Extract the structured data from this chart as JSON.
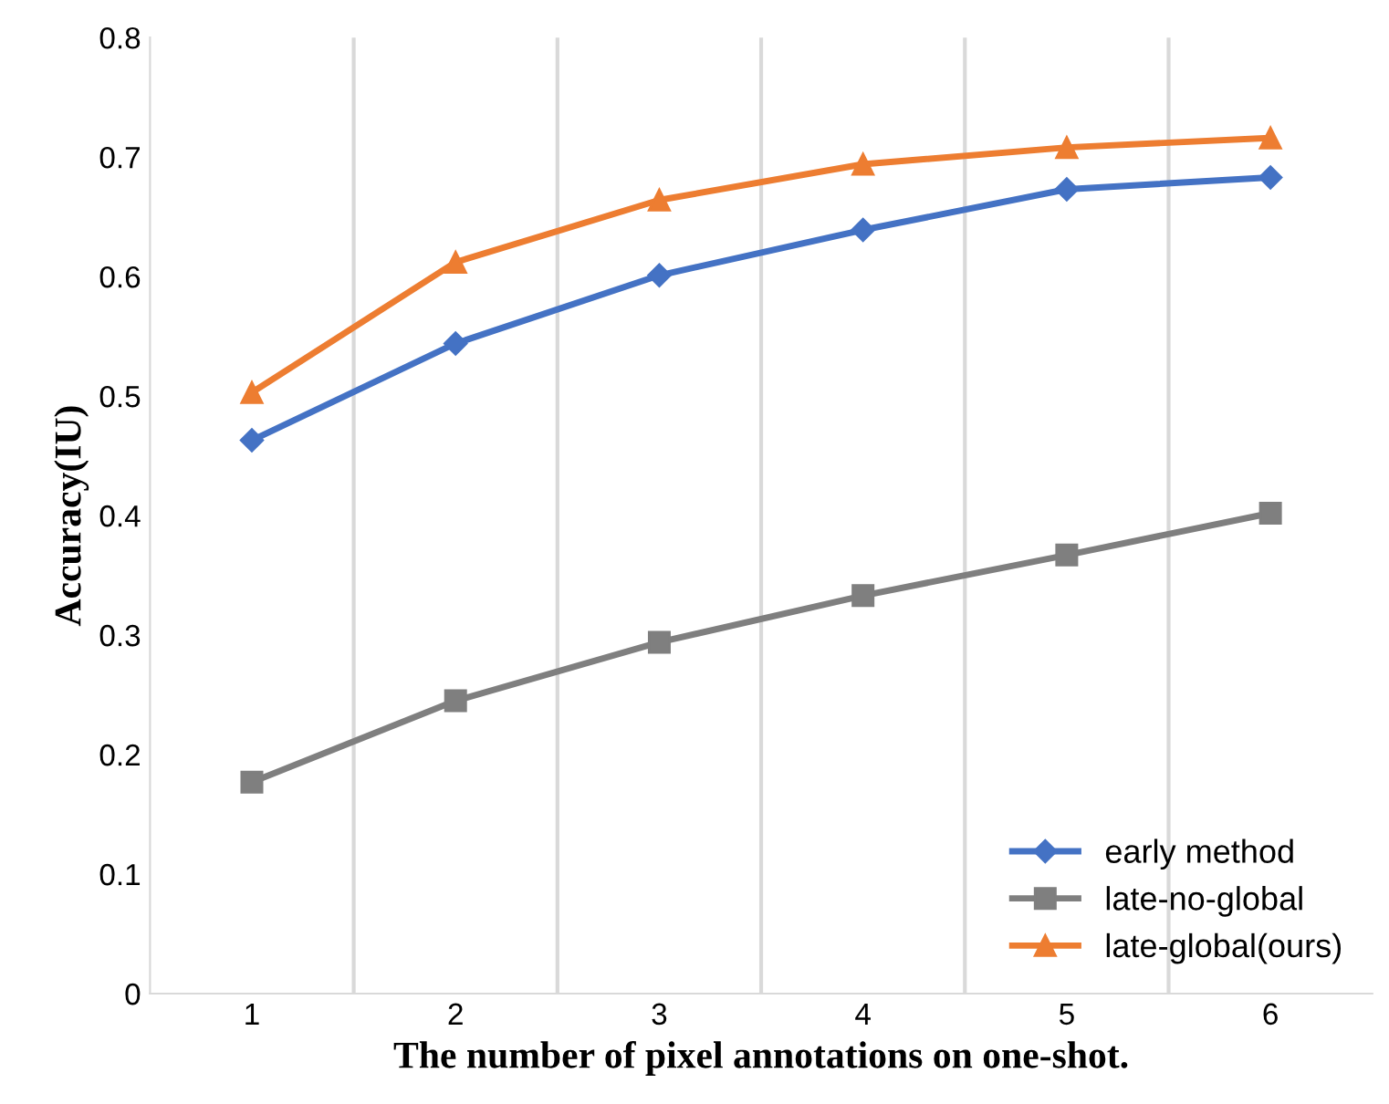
{
  "chart_data": {
    "type": "line",
    "xlabel": "The number of pixel annotations on one-shot.",
    "ylabel": "Accuracy(IU)",
    "categories": [
      "1",
      "2",
      "3",
      "4",
      "5",
      "6"
    ],
    "series": [
      {
        "name": "early method",
        "color": "#4472c4",
        "marker": "diamond",
        "values": [
          0.463,
          0.544,
          0.601,
          0.639,
          0.673,
          0.683
        ]
      },
      {
        "name": "late-no-global",
        "color": "#7f7f7f",
        "marker": "square",
        "values": [
          0.177,
          0.245,
          0.294,
          0.333,
          0.367,
          0.402
        ]
      },
      {
        "name": "late-global(ours)",
        "color": "#ed7d31",
        "marker": "triangle",
        "values": [
          0.503,
          0.612,
          0.664,
          0.694,
          0.708,
          0.716
        ]
      }
    ],
    "ylim": [
      0,
      0.8
    ],
    "yticks": [
      0,
      0.1,
      0.2,
      0.3,
      0.4,
      0.5,
      0.6,
      0.7,
      0.8
    ],
    "grid": "x",
    "legend": "bottom right"
  }
}
